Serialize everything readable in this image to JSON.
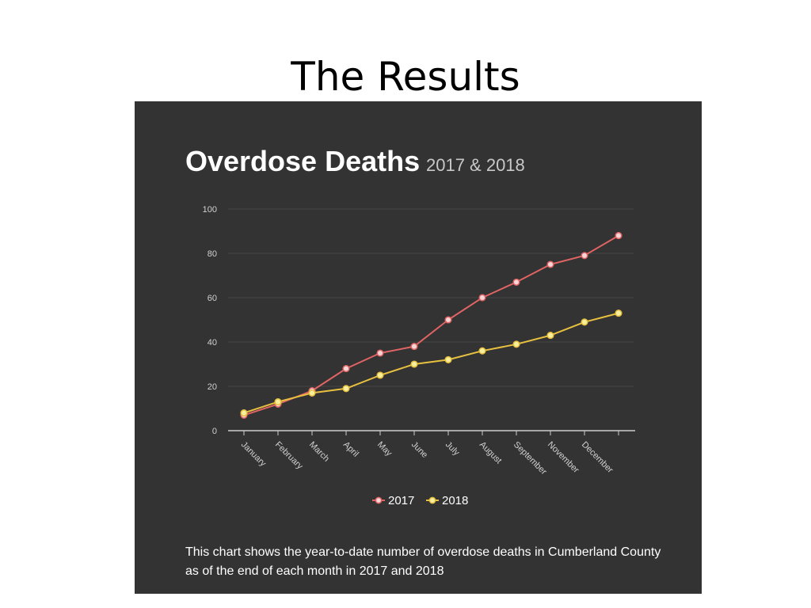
{
  "slide": {
    "title": "The Results"
  },
  "colors": {
    "panel_background": "#333333",
    "title_text": "#ffffff",
    "subtitle_text": "#c8c8c8",
    "axis_text": "#d0d0d0",
    "gridline": "#454545",
    "axis_line": "#cccccc",
    "series_2017": "#e06464",
    "series_2018": "#e8c040",
    "marker_fill_2017": "#f6d6d6",
    "marker_fill_2018": "#f6ef9e"
  },
  "chart_data": {
    "type": "line",
    "title": "Overdose Deaths",
    "subtitle": "2017 & 2018",
    "categories": [
      "January",
      "February",
      "March",
      "April",
      "May",
      "June",
      "July",
      "August",
      "September",
      "November",
      "December",
      ""
    ],
    "series": [
      {
        "name": "2017",
        "values": [
          7,
          12,
          18,
          28,
          35,
          38,
          50,
          60,
          67,
          75,
          79,
          88
        ]
      },
      {
        "name": "2018",
        "values": [
          8,
          13,
          17,
          19,
          25,
          30,
          32,
          36,
          39,
          43,
          49,
          53
        ]
      }
    ],
    "ylim": [
      0,
      100
    ],
    "yticks": [
      0,
      20,
      40,
      60,
      80,
      100
    ],
    "grid": true,
    "legend": "bottom-center",
    "caption_line1": "This chart shows the year-to-date number of overdose deaths in Cumberland County",
    "caption_line2": "as of the end of each month in 2017 and 2018"
  }
}
